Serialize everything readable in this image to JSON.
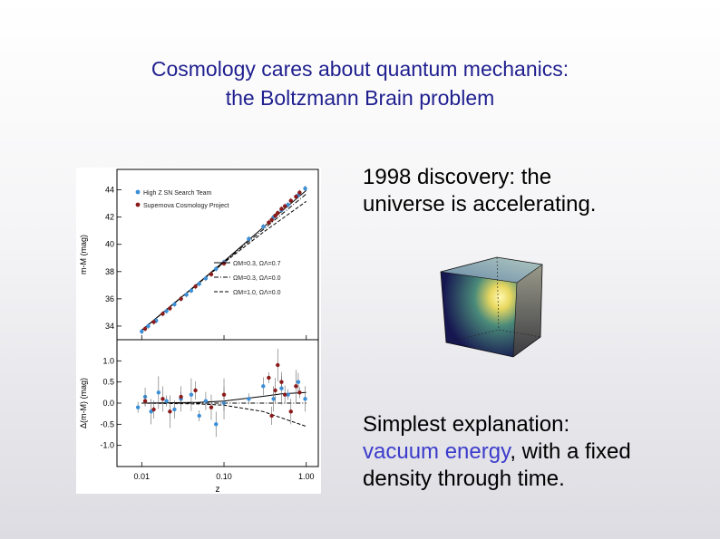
{
  "slide": {
    "title_line1": "Cosmology cares about quantum mechanics:",
    "title_line2": "the Boltzmann Brain problem",
    "bullet1_line1": "1998 discovery: the",
    "bullet1_line2": "universe is accelerating.",
    "bullet2_line1": "Simplest explanation:",
    "bullet2_highlight": "vacuum energy",
    "bullet2_rest": ", with a fixed",
    "bullet2_line3": "density through time.",
    "highlight_color": "#3c3ccc",
    "title_color": "#1f1f8f"
  },
  "chart_data": {
    "type": "scatter",
    "xlabel": "z",
    "x_scale": "log",
    "x_ticks": [
      "0.01",
      "0.10",
      "1.00"
    ],
    "top_panel": {
      "ylabel": "m-M (mag)",
      "ylim": [
        33,
        45.5
      ],
      "y_ticks": [
        "34",
        "36",
        "38",
        "40",
        "42",
        "44"
      ],
      "legend_markers": [
        {
          "name": "High Z SN Search Team",
          "color": "#3a8fd8"
        },
        {
          "name": "Supernova Cosmology Project",
          "color": "#8b1a1a"
        }
      ],
      "model_legend": [
        "ΩM=0.3, ΩΛ=0.7",
        "ΩM=0.3, ΩΛ=0.0",
        "ΩM=1.0, ΩΛ=0.0"
      ]
    },
    "bottom_panel": {
      "ylabel": "Δ(m-M) (mag)",
      "ylim": [
        -1.5,
        1.5
      ],
      "y_ticks": [
        "1.0",
        "0.5",
        "0.0",
        "-0.5",
        "-1.0"
      ]
    },
    "series": [
      {
        "name": "High Z SN Search Team",
        "color": "#3a8fd8",
        "points": [
          [
            0.01,
            33.6
          ],
          [
            0.012,
            34.0
          ],
          [
            0.015,
            34.4
          ],
          [
            0.02,
            35.1
          ],
          [
            0.025,
            35.6
          ],
          [
            0.03,
            36.0
          ],
          [
            0.035,
            36.3
          ],
          [
            0.04,
            36.6
          ],
          [
            0.05,
            37.1
          ],
          [
            0.06,
            37.5
          ],
          [
            0.08,
            38.2
          ],
          [
            0.1,
            38.7
          ],
          [
            0.2,
            40.4
          ],
          [
            0.3,
            41.3
          ],
          [
            0.4,
            42.0
          ],
          [
            0.5,
            42.5
          ],
          [
            0.6,
            42.9
          ],
          [
            0.8,
            43.6
          ],
          [
            0.97,
            44.1
          ]
        ],
        "residuals": [
          [
            0.009,
            -0.1
          ],
          [
            0.011,
            0.15
          ],
          [
            0.013,
            -0.2
          ],
          [
            0.016,
            0.25
          ],
          [
            0.02,
            0.05
          ],
          [
            0.025,
            -0.15
          ],
          [
            0.03,
            0.1
          ],
          [
            0.04,
            0.2
          ],
          [
            0.05,
            -0.3
          ],
          [
            0.06,
            0.05
          ],
          [
            0.08,
            -0.5
          ],
          [
            0.1,
            0.0
          ],
          [
            0.2,
            0.1
          ],
          [
            0.3,
            0.4
          ],
          [
            0.4,
            0.1
          ],
          [
            0.5,
            0.35
          ],
          [
            0.6,
            0.2
          ],
          [
            0.8,
            0.5
          ],
          [
            0.97,
            0.1
          ]
        ]
      },
      {
        "name": "Supernova Cosmology Project",
        "color": "#8b1a1a",
        "points": [
          [
            0.011,
            33.8
          ],
          [
            0.014,
            34.3
          ],
          [
            0.018,
            34.9
          ],
          [
            0.022,
            35.3
          ],
          [
            0.03,
            36.0
          ],
          [
            0.045,
            36.9
          ],
          [
            0.07,
            37.8
          ],
          [
            0.1,
            38.6
          ],
          [
            0.35,
            41.6
          ],
          [
            0.38,
            41.8
          ],
          [
            0.42,
            42.1
          ],
          [
            0.45,
            42.3
          ],
          [
            0.5,
            42.6
          ],
          [
            0.55,
            42.8
          ],
          [
            0.65,
            43.2
          ],
          [
            0.75,
            43.5
          ],
          [
            0.83,
            43.8
          ]
        ],
        "residuals": [
          [
            0.011,
            0.05
          ],
          [
            0.014,
            -0.15
          ],
          [
            0.018,
            0.1
          ],
          [
            0.022,
            -0.2
          ],
          [
            0.03,
            0.15
          ],
          [
            0.045,
            0.3
          ],
          [
            0.07,
            -0.1
          ],
          [
            0.1,
            0.2
          ],
          [
            0.35,
            0.6
          ],
          [
            0.38,
            -0.3
          ],
          [
            0.42,
            0.3
          ],
          [
            0.45,
            0.9
          ],
          [
            0.5,
            0.5
          ],
          [
            0.55,
            0.2
          ],
          [
            0.65,
            -0.2
          ],
          [
            0.75,
            0.4
          ],
          [
            0.83,
            0.25
          ]
        ]
      }
    ],
    "model_curves": [
      {
        "label": "ΩM=0.3, ΩΛ=0.7",
        "style": "solid",
        "residuals": [
          [
            0.01,
            0.0
          ],
          [
            0.05,
            0.02
          ],
          [
            0.1,
            0.05
          ],
          [
            0.3,
            0.16
          ],
          [
            0.5,
            0.22
          ],
          [
            1.0,
            0.25
          ]
        ]
      },
      {
        "label": "ΩM=0.3, ΩΛ=0.0",
        "style": "dash-dot",
        "residuals": [
          [
            0.01,
            0.0
          ],
          [
            0.1,
            0.0
          ],
          [
            1.0,
            0.0
          ]
        ]
      },
      {
        "label": "ΩM=1.0, ΩΛ=0.0",
        "style": "dashed",
        "residuals": [
          [
            0.01,
            0.0
          ],
          [
            0.05,
            -0.02
          ],
          [
            0.1,
            -0.05
          ],
          [
            0.3,
            -0.2
          ],
          [
            0.5,
            -0.35
          ],
          [
            1.0,
            -0.55
          ]
        ]
      }
    ]
  }
}
